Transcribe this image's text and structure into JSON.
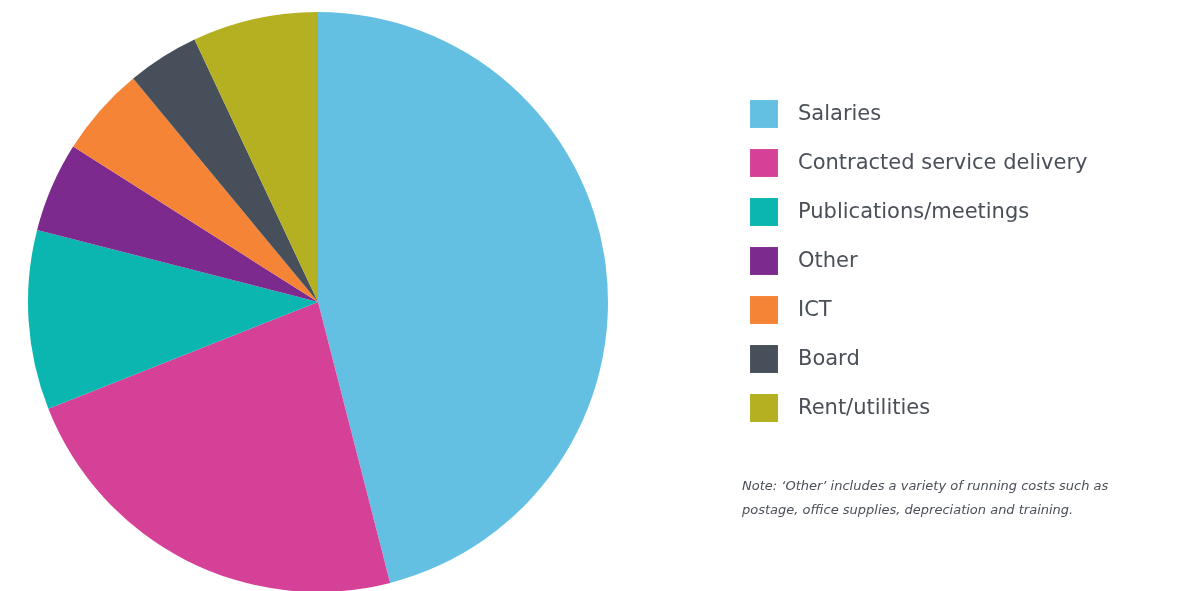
{
  "chart_data": {
    "type": "pie",
    "categories": [
      "Salaries",
      "Contracted service delivery",
      "Publications/meetings",
      "Other",
      "ICT",
      "Board",
      "Rent/utilities"
    ],
    "values": [
      46,
      23,
      10,
      5,
      5,
      4,
      7
    ],
    "colors": [
      "#64c0e3",
      "#d44196",
      "#0cb6b0",
      "#7d2a8f",
      "#f58436",
      "#464f5a",
      "#b5b021"
    ],
    "legend": "right",
    "annotations": [
      "Note: ‘Other’ includes a variety of running costs such as postage, office supplies, depreciation and training."
    ]
  }
}
